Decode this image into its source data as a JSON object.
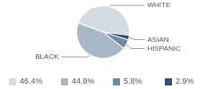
{
  "chart_data": {
    "type": "pie",
    "categories": [
      "WHITE",
      "ASIAN",
      "HISPANIC",
      "BLACK"
    ],
    "values": [
      46.4,
      2.9,
      5.8,
      44.9
    ],
    "value_labels": [
      "46.4%",
      "2.9%",
      "5.8%",
      "44.9%"
    ],
    "colors": [
      "#d3dbe3",
      "#34506e",
      "#6f8aa5",
      "#a9b8c7"
    ],
    "legend": "bottom"
  }
}
